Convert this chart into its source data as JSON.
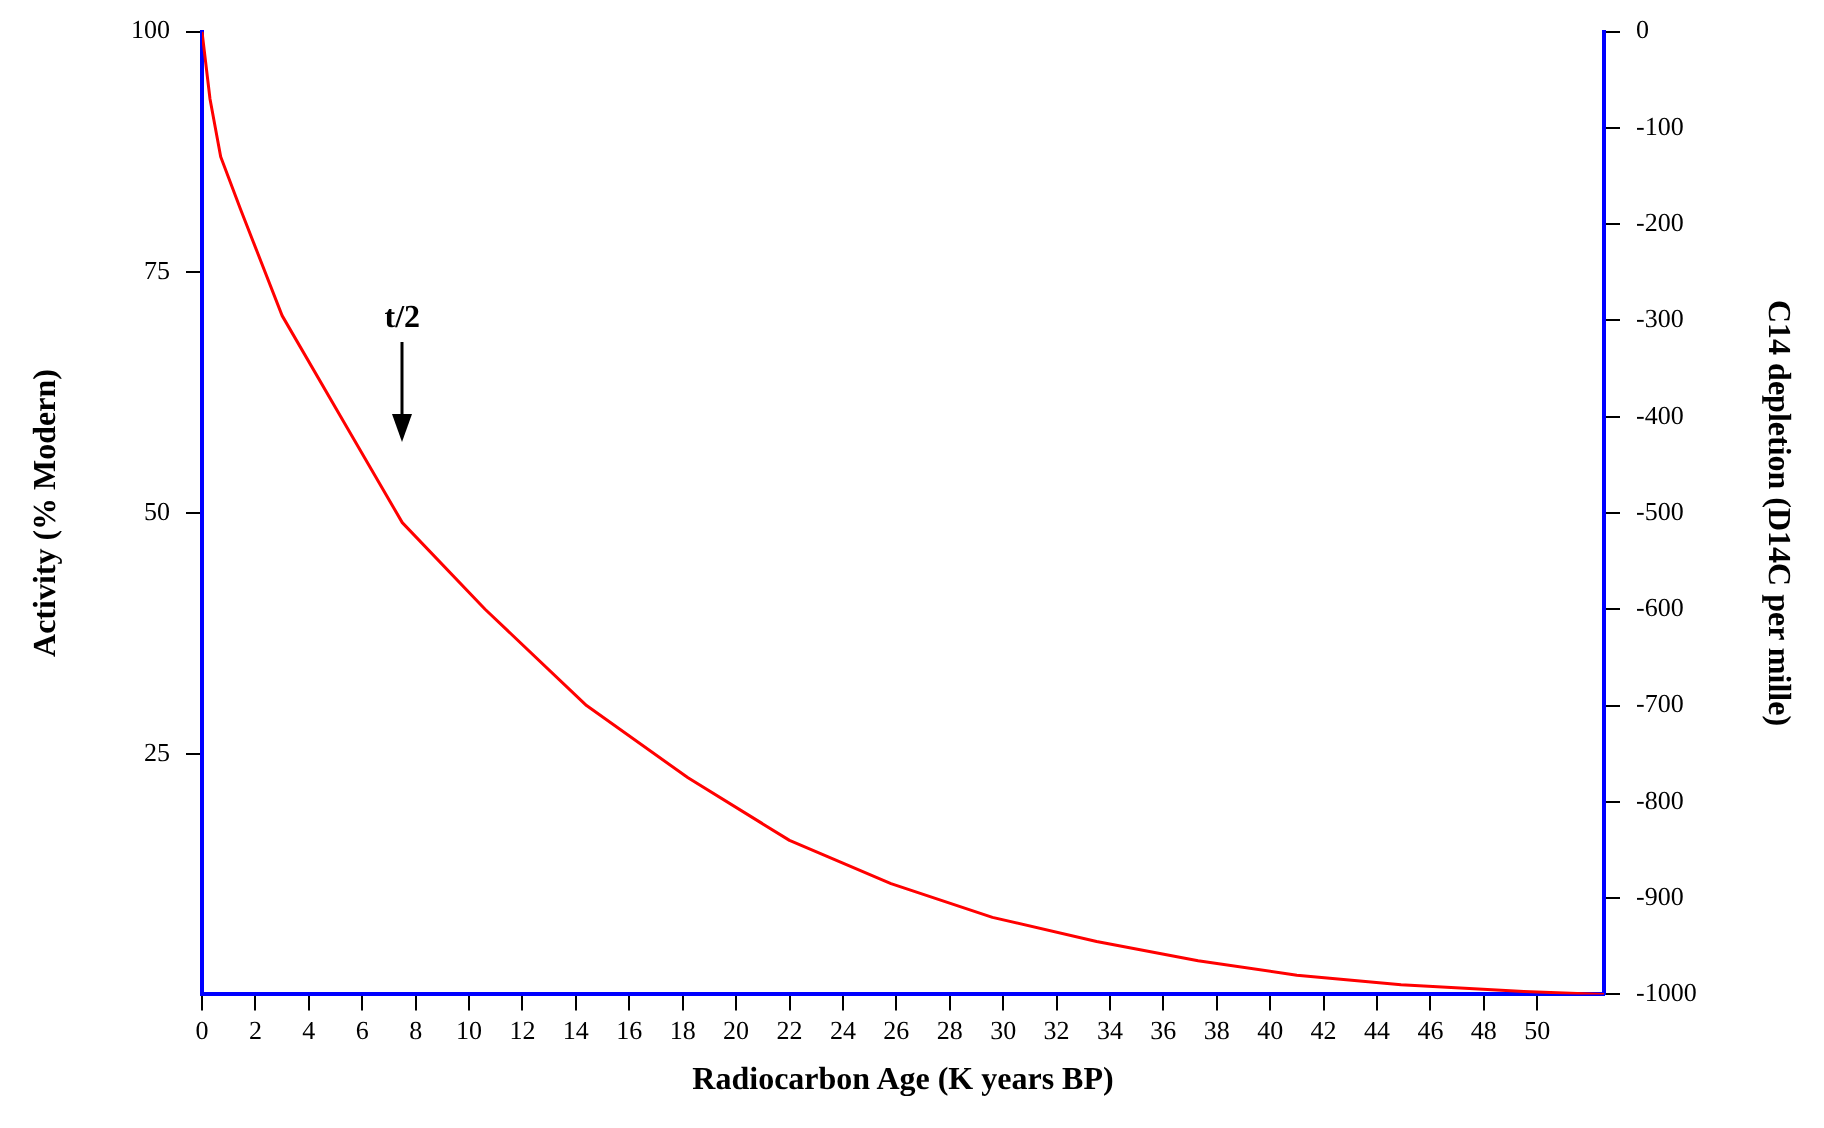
{
  "chart_data": {
    "type": "line",
    "xlabel": "Radiocarbon Age (K years BP)",
    "ylabel": "Activity (% Modern)",
    "y2label": "C14 depletion (D14C per mille)",
    "x": [
      0,
      0.3,
      0.7,
      1.45,
      3,
      5.3,
      7.5,
      10.6,
      14.4,
      18.2,
      22,
      25.8,
      29.6,
      33.5,
      37.3,
      41,
      44.9,
      49.5,
      52.5
    ],
    "series": [
      {
        "color": "#ff0000",
        "values": [
          100,
          93,
          87,
          81.5,
          70.5,
          59.5,
          49,
          40,
          30,
          22.5,
          16,
          11.5,
          8,
          5.5,
          3.5,
          2,
          1,
          0.3,
          0
        ]
      }
    ],
    "xlim": [
      0,
      52.5
    ],
    "xticks": [
      0,
      2,
      4,
      6,
      8,
      10,
      12,
      14,
      16,
      18,
      20,
      22,
      24,
      26,
      28,
      30,
      32,
      34,
      36,
      38,
      40,
      42,
      44,
      46,
      48,
      50
    ],
    "ylim": [
      0,
      100
    ],
    "yticks": [
      25,
      50,
      75,
      100
    ],
    "y2lim": [
      -1000,
      0
    ],
    "y2ticks": [
      -1000,
      -900,
      -800,
      -700,
      -600,
      -500,
      -400,
      -300,
      -200,
      -100,
      0
    ],
    "annotations": [
      "t/2"
    ],
    "grid": false,
    "legend": false,
    "marker": "none",
    "line_style": "solid"
  }
}
